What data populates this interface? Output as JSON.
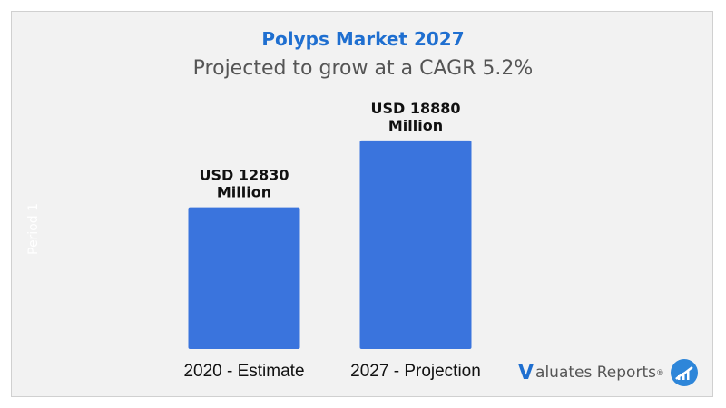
{
  "chart_data": {
    "type": "bar",
    "title": "Polyps Market 2027",
    "subtitle": "Projected to grow at a CAGR 5.2%",
    "categories": [
      "2020 - Estimate",
      "2027  - Projection"
    ],
    "values": [
      12830,
      18880
    ],
    "data_labels": [
      [
        "USD 12830",
        "Million"
      ],
      [
        "USD 18880",
        "Million"
      ]
    ],
    "unit": "USD Million",
    "ylabel": "Period 1",
    "ylim": [
      0,
      21000
    ],
    "grid": false,
    "legend": "none",
    "colors": {
      "bar": "#3a74dd",
      "title": "#1f6fd0",
      "background": "#f2f2f2"
    }
  },
  "brand": {
    "mark": "V",
    "name": "aluates Reports",
    "registered": "®",
    "logo_icon": "chart-circle-icon"
  }
}
